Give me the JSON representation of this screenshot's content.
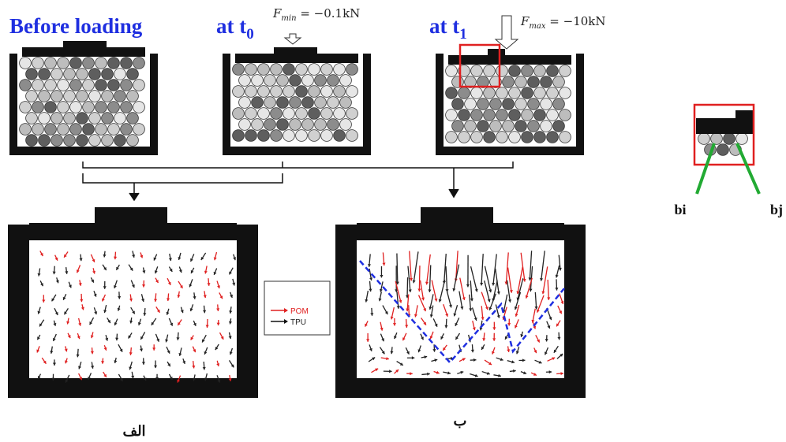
{
  "stages": [
    {
      "label": "Before loading"
    },
    {
      "label": "at t",
      "subscript": "0",
      "force": {
        "symbol": "F",
        "subscript": "min",
        "text": " = −0.1kN"
      }
    },
    {
      "label": "at t",
      "subscript": "1",
      "force": {
        "symbol": "F",
        "subscript": "max",
        "text": " = −10kN"
      }
    }
  ],
  "legend": [
    "POM",
    "TPU"
  ],
  "panels": [
    "الف",
    "ب"
  ],
  "inset": {
    "left": "bi",
    "right": "bj"
  }
}
